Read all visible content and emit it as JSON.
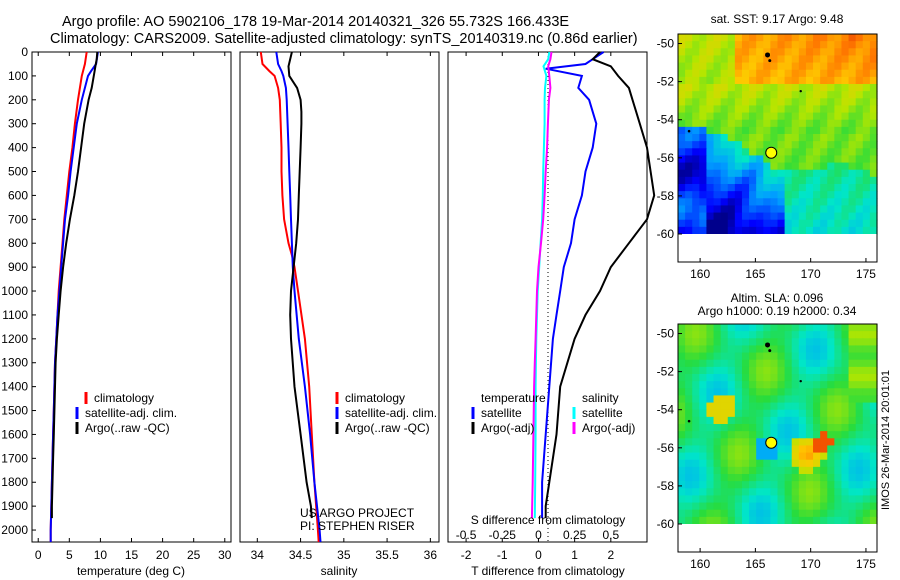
{
  "header": {
    "line1": "Argo profile: AO 5902106_178 19-Mar-2014 20140321_326 55.732S 166.433E",
    "line2": "Climatology: CARS2009. Satellite-adjusted climatology: synTS_20140319.nc (0.86d earlier)"
  },
  "project": {
    "line1": "US ARGO PROJECT",
    "line2": "PI: STEPHEN RISER"
  },
  "imos_label": "IMOS 26-Mar-2014 20:01:01",
  "colors": {
    "red": "#ff0000",
    "blue": "#0000ff",
    "black": "#000000",
    "cyan": "#00ffff",
    "magenta": "#ff00ff"
  },
  "chart_data": [
    {
      "id": "temperature",
      "type": "line",
      "xlabel": "temperature (deg C)",
      "xlim": [
        -1,
        31
      ],
      "xticks": [
        0,
        5,
        10,
        15,
        20,
        25,
        30
      ],
      "xtick_labels": [
        "0",
        "5",
        "10",
        "15",
        "20",
        "25",
        "30"
      ],
      "ylim": [
        2050,
        0
      ],
      "yticks": [
        0,
        100,
        200,
        300,
        400,
        500,
        600,
        700,
        800,
        900,
        1000,
        1100,
        1200,
        1300,
        1400,
        1500,
        1600,
        1700,
        1800,
        1900,
        2000
      ],
      "legend": [
        "climatology",
        "satellite-adj. clim.",
        "Argo(..raw -QC)"
      ],
      "series": [
        {
          "name": "climatology",
          "color": "red",
          "depth": [
            0,
            50,
            100,
            200,
            300,
            400,
            500,
            600,
            700,
            800,
            900,
            1000,
            1100,
            1200,
            1300,
            1400,
            1500,
            1600,
            1700,
            1800,
            1900,
            2000,
            2050
          ],
          "values": [
            7.8,
            7.5,
            7.0,
            6.4,
            5.9,
            5.5,
            5.0,
            4.6,
            4.2,
            3.9,
            3.6,
            3.3,
            3.1,
            2.9,
            2.7,
            2.6,
            2.5,
            2.4,
            2.3,
            2.2,
            2.1,
            2.0,
            2.0
          ]
        },
        {
          "name": "satellite-adj. clim.",
          "color": "blue",
          "depth": [
            0,
            50,
            80,
            100,
            200,
            300,
            400,
            500,
            600,
            700,
            800,
            900,
            1000,
            1100,
            1200,
            1300,
            1400,
            1500,
            1600,
            1700,
            1800,
            1900,
            2000,
            2050
          ],
          "values": [
            9.6,
            9.3,
            8.5,
            8.0,
            7.0,
            6.2,
            5.7,
            5.2,
            4.8,
            4.3,
            4.0,
            3.7,
            3.4,
            3.1,
            2.9,
            2.7,
            2.6,
            2.5,
            2.4,
            2.3,
            2.2,
            2.1,
            2.0,
            2.0
          ]
        },
        {
          "name": "Argo(..raw -QC)",
          "color": "black",
          "depth": [
            0,
            30,
            60,
            90,
            150,
            200,
            300,
            400,
            500,
            600,
            700,
            800,
            900,
            1000,
            1100,
            1200,
            1300,
            1400,
            1500,
            1600,
            1700,
            1800,
            1900,
            1950
          ],
          "values": [
            9.5,
            9.4,
            9.2,
            9.0,
            8.6,
            8.1,
            7.4,
            6.9,
            6.4,
            5.8,
            5.1,
            4.5,
            4.0,
            3.6,
            3.3,
            3.0,
            2.8,
            2.7,
            2.6,
            2.5,
            2.4,
            2.3,
            2.2,
            2.2
          ]
        }
      ]
    },
    {
      "id": "salinity",
      "type": "line",
      "xlabel": "salinity",
      "xlim": [
        33.8,
        36.1
      ],
      "xticks": [
        34,
        34.5,
        35,
        35.5,
        36
      ],
      "xtick_labels": [
        "34",
        "34.5",
        "35",
        "35.5",
        "36"
      ],
      "ylim": [
        2050,
        0
      ],
      "legend": [
        "climatology",
        "satellite-adj. clim.",
        "Argo(..raw -QC)"
      ],
      "series": [
        {
          "name": "climatology",
          "color": "red",
          "depth": [
            0,
            50,
            80,
            100,
            150,
            200,
            300,
            400,
            500,
            600,
            700,
            800,
            850,
            900,
            1000,
            1200,
            1400,
            1600,
            1800,
            2000,
            2050
          ],
          "values": [
            34.04,
            34.06,
            34.14,
            34.2,
            34.24,
            34.26,
            34.27,
            34.28,
            34.28,
            34.29,
            34.31,
            34.36,
            34.4,
            34.43,
            34.47,
            34.55,
            34.6,
            34.63,
            34.66,
            34.7,
            34.71
          ]
        },
        {
          "name": "satellite-adj. clim.",
          "color": "blue",
          "depth": [
            0,
            50,
            80,
            100,
            150,
            200,
            300,
            400,
            500,
            600,
            700,
            800,
            900,
            1000,
            1200,
            1400,
            1600,
            1800,
            1900,
            2000,
            2050
          ],
          "values": [
            34.22,
            34.24,
            34.28,
            34.3,
            34.33,
            34.34,
            34.35,
            34.36,
            34.37,
            34.38,
            34.39,
            34.4,
            34.41,
            34.43,
            34.48,
            34.55,
            34.61,
            34.66,
            34.69,
            34.72,
            34.73
          ]
        },
        {
          "name": "Argo(..raw -QC)",
          "color": "black",
          "depth": [
            0,
            60,
            100,
            150,
            200,
            250,
            300,
            400,
            500,
            600,
            700,
            800,
            900,
            1000,
            1100,
            1200,
            1400,
            1600,
            1800,
            1900,
            1950
          ],
          "values": [
            34.4,
            34.36,
            34.37,
            34.46,
            34.5,
            34.51,
            34.51,
            34.5,
            34.49,
            34.48,
            34.47,
            34.45,
            34.42,
            34.39,
            34.38,
            34.39,
            34.43,
            34.5,
            34.57,
            34.62,
            34.63
          ]
        }
      ]
    },
    {
      "id": "difference",
      "type": "line",
      "xlabel": "T difference from climatology",
      "x2label": "S difference from climatology",
      "xlim": [
        -2.5,
        3
      ],
      "xticks": [
        -2,
        -1,
        0,
        1,
        2
      ],
      "xtick_labels": [
        "-2",
        "-1",
        "0",
        "1",
        "2"
      ],
      "top_ticks": [
        -0.5,
        -0.25,
        0,
        0.25,
        0.5
      ],
      "top_tick_labels": [
        "-0.5",
        "-0.25",
        "0",
        "0.25",
        "0.5"
      ],
      "ylim": [
        2050,
        0
      ],
      "legend_groups": [
        {
          "title": "temperature",
          "items": [
            "satellite",
            "Argo(-adj)"
          ]
        },
        {
          "title": "salinity",
          "items": [
            "satellite",
            "Argo(-adj)"
          ]
        }
      ],
      "series": [
        {
          "name": "temperature satellite",
          "color": "blue",
          "depth": [
            0,
            20,
            50,
            70,
            100,
            150,
            200,
            300,
            400,
            500,
            600,
            700,
            800,
            900,
            1000,
            1100,
            1200,
            1400,
            1600,
            1800,
            1950
          ],
          "values": [
            1.8,
            1.6,
            1.3,
            0.2,
            1.2,
            1.1,
            1.4,
            1.6,
            1.5,
            1.3,
            1.2,
            1.0,
            0.9,
            0.7,
            0.6,
            0.5,
            0.4,
            0.3,
            0.2,
            0.1,
            0.1
          ]
        },
        {
          "name": "temperature Argo(-adj)",
          "color": "black",
          "depth": [
            0,
            30,
            60,
            100,
            150,
            200,
            300,
            400,
            500,
            600,
            700,
            800,
            900,
            1000,
            1100,
            1200,
            1300,
            1400,
            1600,
            1800,
            1900,
            1950
          ],
          "values": [
            1.7,
            1.5,
            2.0,
            2.2,
            2.5,
            2.6,
            2.8,
            3.0,
            3.1,
            3.2,
            3.0,
            2.5,
            2.0,
            1.7,
            1.3,
            1.0,
            0.8,
            0.6,
            0.5,
            0.3,
            0.2,
            0.2
          ]
        },
        {
          "name": "salinity satellite",
          "color": "cyan",
          "depth": [
            0,
            30,
            60,
            100,
            150,
            200,
            300,
            400,
            500,
            600,
            700,
            800,
            900,
            1000,
            1100,
            1200,
            1300,
            1400,
            1600,
            1800,
            1950
          ],
          "values": [
            0.3,
            0.27,
            0.14,
            0.22,
            0.18,
            0.17,
            0.17,
            0.15,
            0.13,
            0.12,
            0.1,
            0.06,
            0.02,
            -0.02,
            -0.04,
            -0.06,
            -0.07,
            -0.08,
            -0.08,
            -0.09,
            -0.1
          ]
        },
        {
          "name": "salinity Argo(-adj)",
          "color": "magenta",
          "depth": [
            0,
            30,
            60,
            100,
            150,
            200,
            300,
            400,
            500,
            600,
            700,
            800,
            900,
            1000,
            1100,
            1200,
            1300,
            1400,
            1600,
            1800,
            1950
          ],
          "values": [
            0.36,
            0.33,
            0.27,
            0.3,
            0.33,
            0.29,
            0.26,
            0.24,
            0.2,
            0.17,
            0.13,
            0.07,
            0.0,
            -0.04,
            -0.06,
            -0.08,
            -0.1,
            -0.12,
            -0.14,
            -0.16,
            -0.18
          ]
        }
      ]
    },
    {
      "id": "sst-map",
      "type": "heatmap",
      "title": "sat. SST: 9.17 Argo: 9.48",
      "xlim": [
        158,
        176
      ],
      "ylim": [
        -60,
        -49.5
      ],
      "xticks": [
        160,
        165,
        170,
        175
      ],
      "xtick_labels": [
        "160",
        "165",
        "170",
        "175"
      ],
      "yticks": [
        -50,
        -52,
        -54,
        -56,
        -58,
        -60
      ],
      "ytick_labels": [
        "-50",
        "-52",
        "-54",
        "-56",
        "-58",
        "-60"
      ],
      "marker": {
        "lon": 166.433,
        "lat": -55.732
      }
    },
    {
      "id": "sla-map",
      "type": "heatmap",
      "title": "Altim. SLA: 0.096",
      "subtitle": "Argo h1000: 0.19 h2000: 0.34",
      "xlim": [
        158,
        176
      ],
      "ylim": [
        -60,
        -49.5
      ],
      "xticks": [
        160,
        165,
        170,
        175
      ],
      "xtick_labels": [
        "160",
        "165",
        "170",
        "175"
      ],
      "yticks": [
        -50,
        -52,
        -54,
        -56,
        -58,
        -60
      ],
      "ytick_labels": [
        "-50",
        "-52",
        "-54",
        "-56",
        "-58",
        "-60"
      ],
      "marker": {
        "lon": 166.433,
        "lat": -55.732
      }
    }
  ]
}
